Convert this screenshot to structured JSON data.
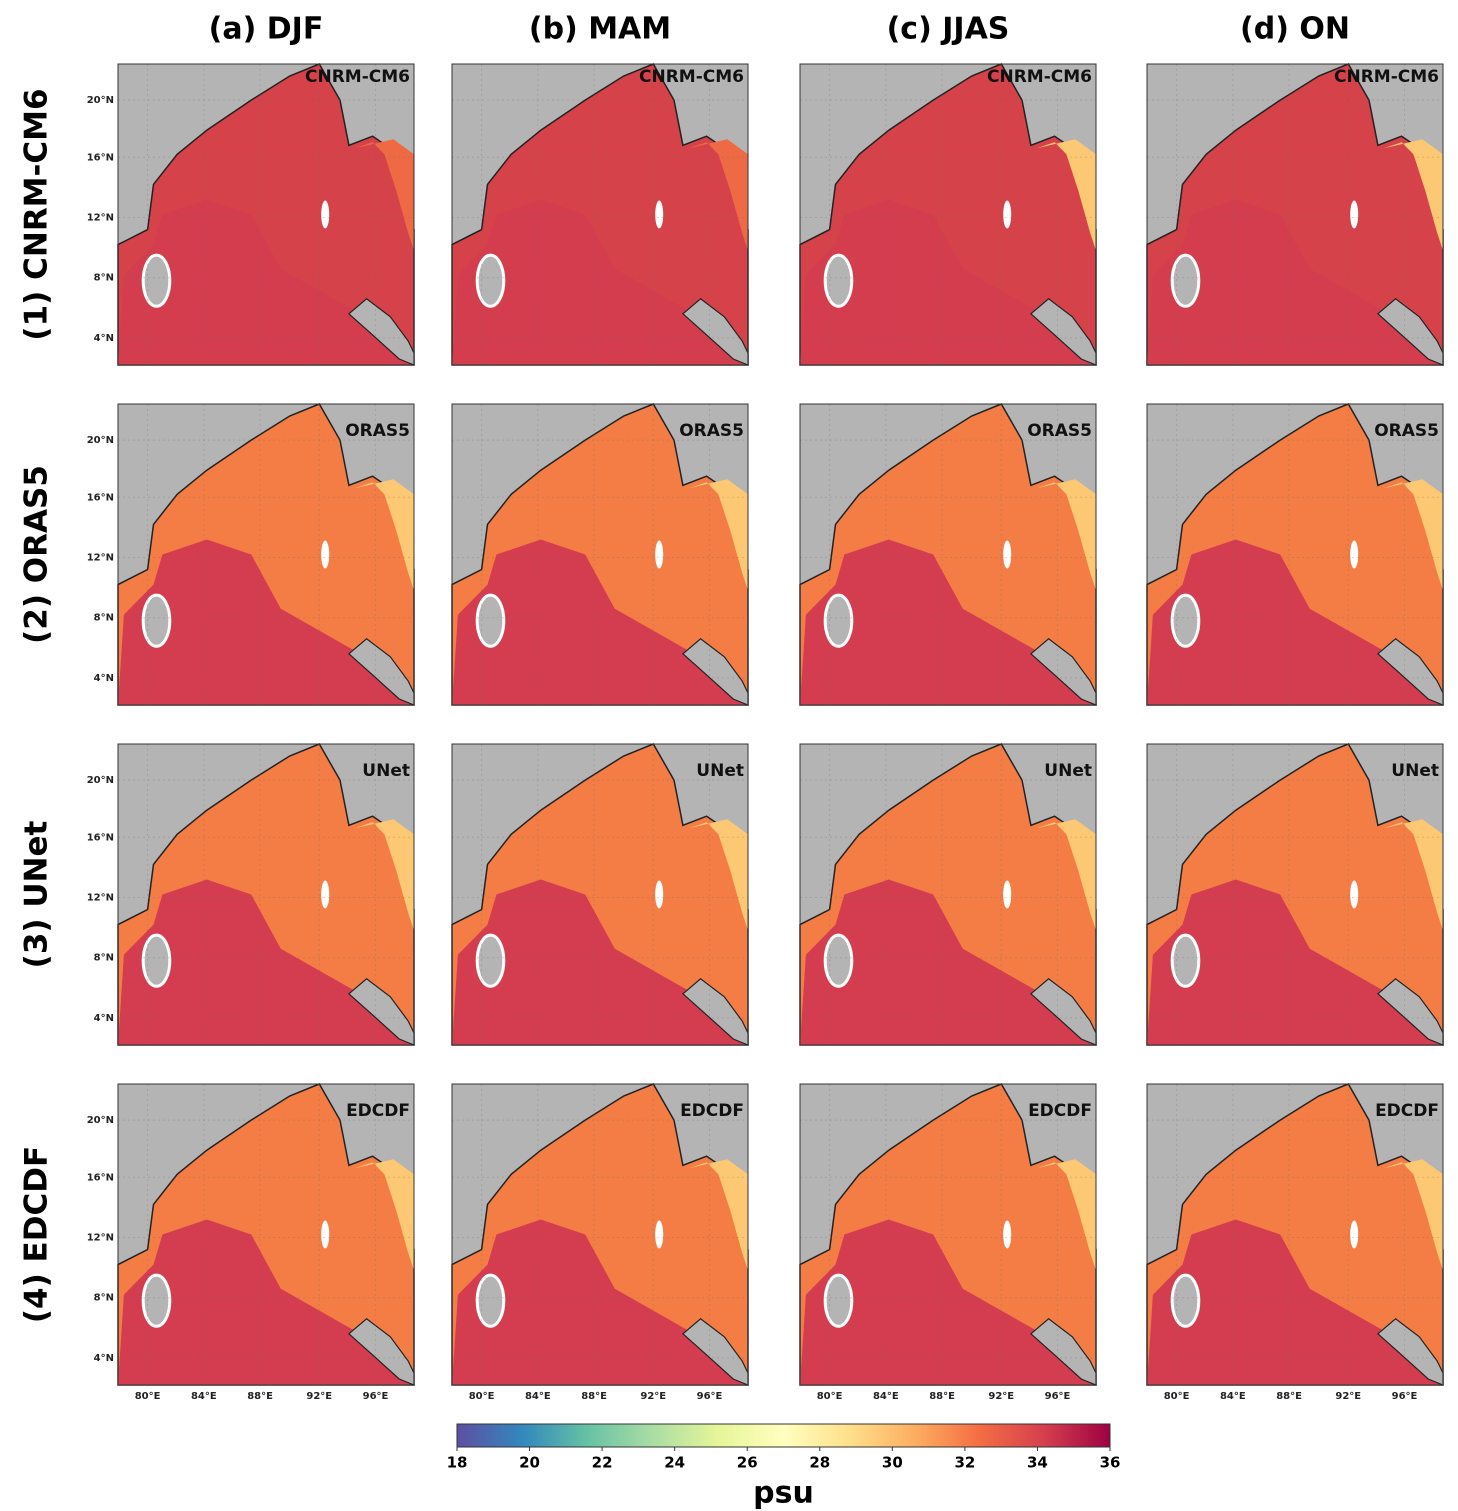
{
  "columns": [
    "(a) DJF",
    "(b) MAM",
    "(c) JJAS",
    "(d) ON"
  ],
  "rows": [
    {
      "label": "(1) CNRM-CM6",
      "panel_label": "CNRM-CM6"
    },
    {
      "label": "(2) ORAS5",
      "panel_label": "ORAS5"
    },
    {
      "label": "(3) UNet",
      "panel_label": "UNet"
    },
    {
      "label": "(4) EDCDF",
      "panel_label": "EDCDF"
    }
  ],
  "lat_labels": [
    "20°N",
    "16°N",
    "12°N",
    "8°N",
    "4°N"
  ],
  "lon_labels": [
    "80°E",
    "84°E",
    "88°E",
    "92°E",
    "96°E"
  ],
  "colorbar": {
    "label": "psu",
    "range": [
      18,
      36
    ],
    "ticks": [
      18,
      20,
      22,
      24,
      26,
      28,
      30,
      32,
      34,
      36
    ]
  }
}
